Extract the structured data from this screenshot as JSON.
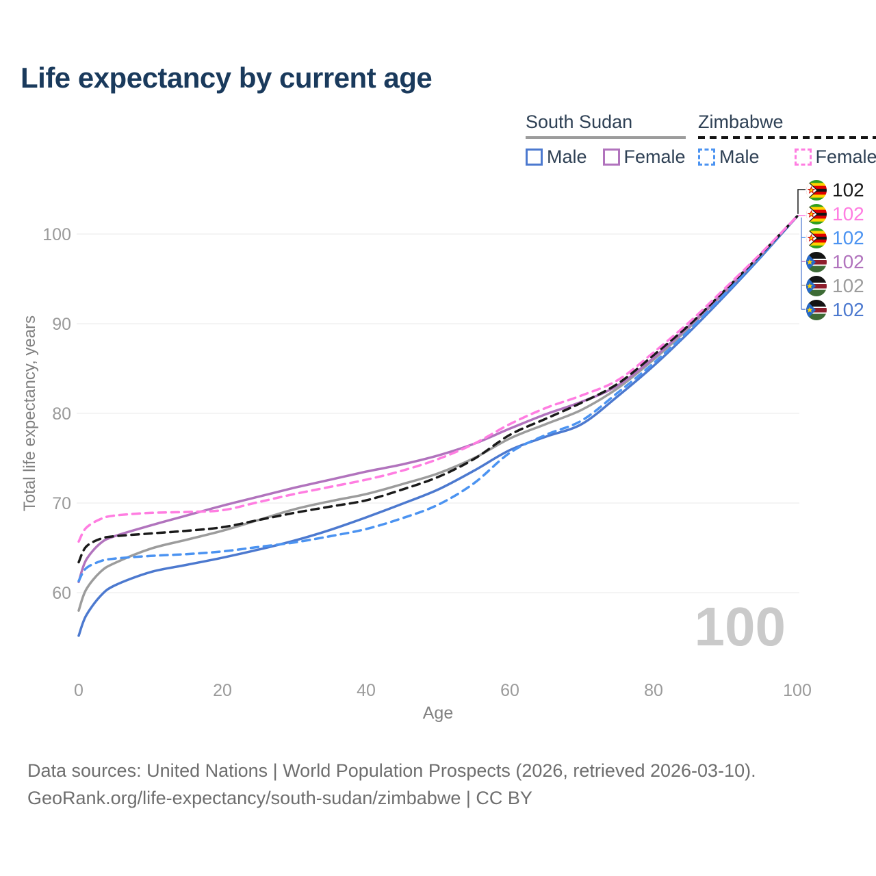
{
  "title": "Life expectancy by current age",
  "legend": {
    "groups": [
      {
        "country": "South Sudan",
        "line_style": "solid",
        "underline_color": "#9c9c9c",
        "items": [
          {
            "label": "Male",
            "color": "#4c79cf"
          },
          {
            "label": "Female",
            "color": "#b173bd"
          }
        ]
      },
      {
        "country": "Zimbabwe",
        "line_style": "dashed",
        "underline_color": "#141414",
        "items": [
          {
            "label": "Male",
            "color": "#4b93f1"
          },
          {
            "label": "Female",
            "color": "#ff7de1"
          }
        ]
      }
    ]
  },
  "watermark": "100",
  "footer": {
    "line1": "Data sources: United Nations | World Population Prospects (2026, retrieved 2026-03-10).",
    "line2": "GeoRank.org/life-expectancy/south-sudan/zimbabwe | CC BY"
  },
  "chart_data": {
    "type": "line",
    "title": "Life expectancy by current age",
    "xlabel": "Age",
    "ylabel": "Total life expectancy, years",
    "xlim": [
      0,
      100
    ],
    "ylim": [
      54,
      103
    ],
    "x_ticks": [
      0,
      20,
      40,
      60,
      80,
      100
    ],
    "y_ticks": [
      60,
      70,
      80,
      90,
      100
    ],
    "grid": "horizontal-only",
    "legend_position": "top-right",
    "x": [
      0,
      1,
      3,
      5,
      10,
      15,
      20,
      25,
      30,
      35,
      40,
      45,
      50,
      55,
      60,
      65,
      70,
      75,
      80,
      85,
      90,
      95,
      100
    ],
    "series": [
      {
        "name": "South Sudan Male",
        "country": "South Sudan",
        "sex": "Male",
        "color": "#4c79cf",
        "dashed": false,
        "values": [
          55.2,
          57.4,
          59.6,
          60.8,
          62.3,
          63.1,
          63.9,
          64.8,
          65.8,
          67.0,
          68.4,
          69.9,
          71.5,
          73.6,
          75.9,
          77.4,
          78.8,
          81.9,
          85.3,
          89.1,
          93.2,
          97.5,
          102
        ]
      },
      {
        "name": "South Sudan",
        "country": "South Sudan",
        "sex": "Both",
        "color": "#9c9c9c",
        "dashed": false,
        "values": [
          58.0,
          60.3,
          62.3,
          63.3,
          64.9,
          65.9,
          66.9,
          68.1,
          69.3,
          70.2,
          71.0,
          72.1,
          73.3,
          75.0,
          77.2,
          78.8,
          80.4,
          82.8,
          86.0,
          89.6,
          93.6,
          97.7,
          102
        ]
      },
      {
        "name": "South Sudan Female",
        "country": "South Sudan",
        "sex": "Female",
        "color": "#b173bd",
        "dashed": false,
        "values": [
          61.2,
          63.6,
          65.5,
          66.3,
          67.5,
          68.6,
          69.7,
          70.7,
          71.7,
          72.6,
          73.5,
          74.3,
          75.3,
          76.6,
          78.3,
          79.9,
          81.3,
          83.1,
          86.2,
          89.8,
          93.7,
          97.8,
          102
        ]
      },
      {
        "name": "Zimbabwe Male",
        "country": "Zimbabwe",
        "sex": "Male",
        "color": "#4b93f1",
        "dashed": true,
        "values": [
          61.3,
          62.7,
          63.5,
          63.8,
          64.1,
          64.3,
          64.6,
          65.1,
          65.6,
          66.3,
          67.1,
          68.3,
          69.8,
          72.2,
          75.6,
          77.6,
          79.2,
          82.3,
          85.6,
          89.3,
          93.4,
          97.6,
          102
        ]
      },
      {
        "name": "Zimbabwe",
        "country": "Zimbabwe",
        "sex": "Both",
        "color": "#1a1a1a",
        "dashed": true,
        "values": [
          63.4,
          65.1,
          66.0,
          66.3,
          66.6,
          66.9,
          67.3,
          68.1,
          68.9,
          69.6,
          70.3,
          71.5,
          72.9,
          74.9,
          77.6,
          79.4,
          81.2,
          83.3,
          86.5,
          89.9,
          93.8,
          97.8,
          102
        ]
      },
      {
        "name": "Zimbabwe Female",
        "country": "Zimbabwe",
        "sex": "Female",
        "color": "#ff7de1",
        "dashed": true,
        "values": [
          65.7,
          67.2,
          68.2,
          68.6,
          68.9,
          69.0,
          69.2,
          70.1,
          71.0,
          71.8,
          72.6,
          73.6,
          74.9,
          76.6,
          78.8,
          80.6,
          82.0,
          83.7,
          86.8,
          90.2,
          94.0,
          97.9,
          102
        ]
      }
    ],
    "end_labels": [
      {
        "series": "Zimbabwe",
        "country": "Zimbabwe",
        "label": "102",
        "color": "#1a1a1a"
      },
      {
        "series": "Zimbabwe Female",
        "country": "Zimbabwe",
        "label": "102",
        "color": "#ff7de1"
      },
      {
        "series": "Zimbabwe Male",
        "country": "Zimbabwe",
        "label": "102",
        "color": "#4b93f1"
      },
      {
        "series": "South Sudan Female",
        "country": "South Sudan",
        "label": "102",
        "color": "#b173bd"
      },
      {
        "series": "South Sudan",
        "country": "South Sudan",
        "label": "102",
        "color": "#9c9c9c"
      },
      {
        "series": "South Sudan Male",
        "country": "South Sudan",
        "label": "102",
        "color": "#4c79cf"
      }
    ]
  }
}
